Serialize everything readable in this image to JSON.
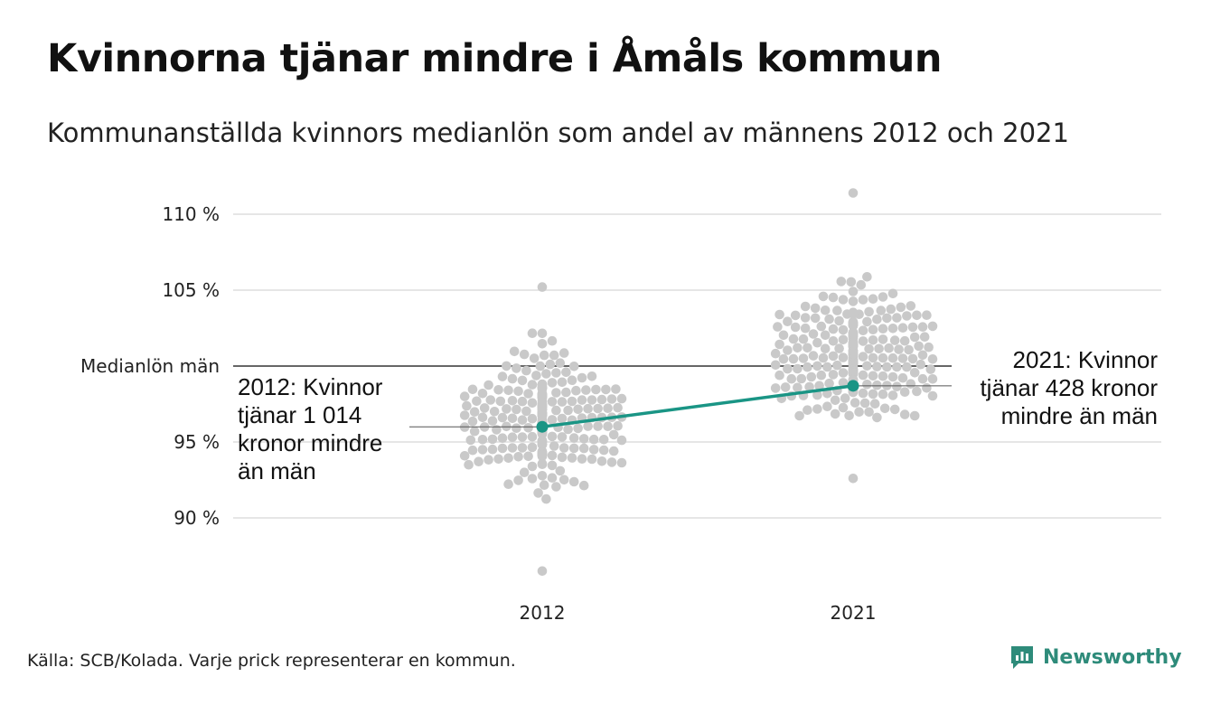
{
  "title": "Kvinnorna tjänar mindre i Åmåls kommun",
  "subtitle": "Kommunanställda kvinnors medianlön som andel av männens 2012 och 2021",
  "source": "Källa: SCB/Kolada. Varje prick representerar en kommun.",
  "brand": {
    "name": "Newsworthy",
    "logo_icon": "newsworthy-chat-chart-icon"
  },
  "colors": {
    "highlight": "#1a9585",
    "dots": "#c9c9c9",
    "grid": "#dddddd",
    "reference": "#333333"
  },
  "chart_data": {
    "type": "scatter",
    "title": "Kvinnorna tjänar mindre i Åmåls kommun",
    "subtitle": "Kommunanställda kvinnors medianlön som andel av männens 2012 och 2021",
    "categories": [
      "2012",
      "2021"
    ],
    "ylim": [
      86,
      111
    ],
    "yticks": [
      {
        "value": 90,
        "label": "90 %"
      },
      {
        "value": 95,
        "label": "95 %"
      },
      {
        "value": 105,
        "label": "105 %"
      },
      {
        "value": 110,
        "label": "110 %"
      }
    ],
    "reference_line": {
      "value": 100,
      "label": "Medianlön män"
    },
    "grid": true,
    "series": [
      {
        "name": "Åmål",
        "highlight": true,
        "values": [
          96.0,
          98.7
        ]
      }
    ],
    "swarm": [
      {
        "category": "2012",
        "median": 96.5,
        "count": 290,
        "min": 86.5,
        "max": 105.2
      },
      {
        "category": "2021",
        "median": 100.6,
        "count": 290,
        "min": 92.6,
        "max": 111.4
      }
    ],
    "annotations": [
      {
        "category": "2012",
        "lines": [
          "2012: Kvinnor",
          "tjänar 1 014",
          "kronor mindre",
          "än män"
        ]
      },
      {
        "category": "2021",
        "lines": [
          "2021: Kvinnor",
          "tjänar 428 kronor",
          "mindre än män"
        ]
      }
    ]
  }
}
